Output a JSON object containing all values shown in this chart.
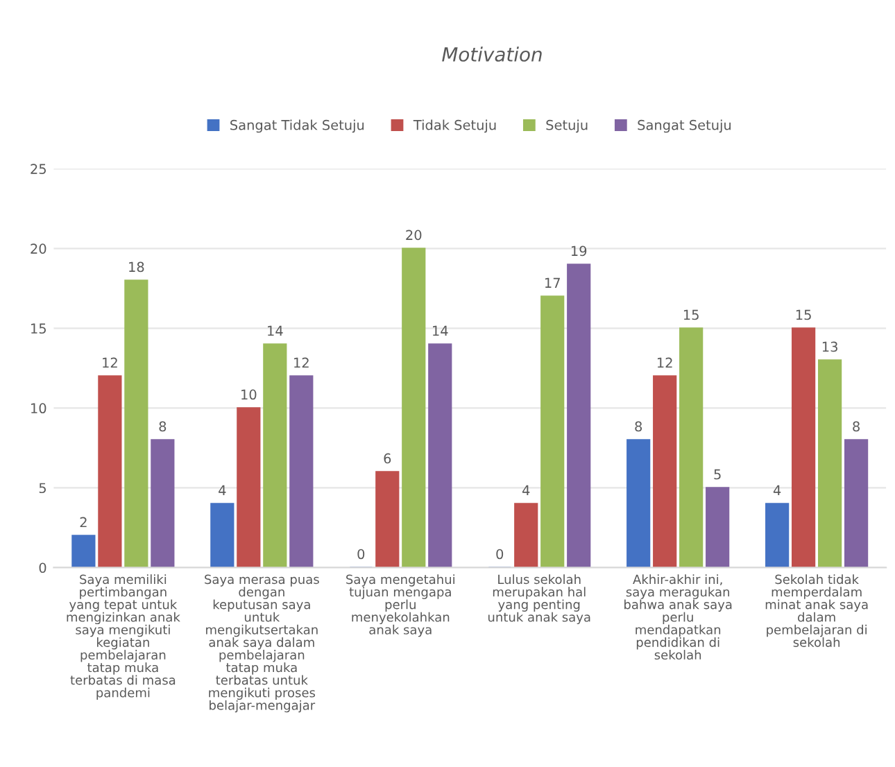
{
  "chart_data": {
    "type": "bar",
    "title": "Motivation",
    "categories": [
      "Saya memiliki\npertimbangan\nyang tepat untuk\nmengizinkan anak\nsaya mengikuti\nkegiatan\npembelajaran\ntatap muka\nterbatas di masa\npandemi",
      "Saya merasa puas\ndengan\nkeputusan saya\nuntuk\nmengikutsertakan\nanak saya dalam\npembelajaran\ntatap muka\nterbatas untuk\nmengikuti proses\nbelajar-mengajar",
      "Saya mengetahui\ntujuan mengapa\nperlu\nmenyekolahkan\nanak saya",
      "Lulus sekolah\nmerupakan hal\nyang penting\nuntuk anak saya",
      "Akhir-akhir ini,\nsaya meragukan\nbahwa anak saya\nperlu\nmendapatkan\npendidikan di\nsekolah",
      "Sekolah tidak\nmemperdalam\nminat anak saya\ndalam\npembelajaran di\nsekolah"
    ],
    "series": [
      {
        "name": "Sangat Tidak Setuju",
        "color": "#4472c4",
        "values": [
          2,
          4,
          0,
          0,
          8,
          4
        ]
      },
      {
        "name": "Tidak Setuju",
        "color": "#c0504d",
        "values": [
          12,
          10,
          6,
          4,
          12,
          15
        ]
      },
      {
        "name": "Setuju",
        "color": "#9bbb59",
        "values": [
          18,
          14,
          20,
          17,
          15,
          13
        ]
      },
      {
        "name": "Sangat Setuju",
        "color": "#8064a2",
        "values": [
          8,
          12,
          14,
          19,
          5,
          8
        ]
      }
    ],
    "ylim": [
      0,
      25
    ],
    "yticks": [
      0,
      5,
      10,
      15,
      20,
      25
    ],
    "grid": "y",
    "legend": "top",
    "data_labels": true
  }
}
